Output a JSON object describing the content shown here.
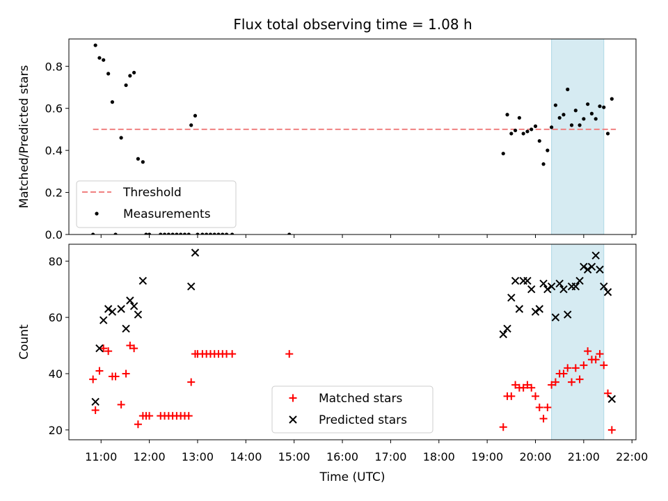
{
  "figure_title": "Flux total observing time = 1.08 h",
  "colors": {
    "threshold": "#f08080",
    "measurements": "#000000",
    "matched": "#ff0000",
    "predicted": "#000000",
    "shade": "#add8e6"
  },
  "chart_data": [
    {
      "type": "scatter",
      "title": "",
      "xlabel": "",
      "ylabel": "Matched/Predicted stars",
      "xlim": [
        "10:20",
        "22:05"
      ],
      "ylim": [
        0,
        0.93
      ],
      "yticks": [
        0.0,
        0.2,
        0.4,
        0.6,
        0.8
      ],
      "grid": false,
      "legend_position": "lower-left",
      "highlight_span": [
        "20:20",
        "21:25"
      ],
      "threshold": {
        "name": "Threshold",
        "value": 0.5,
        "from": "10:50",
        "to": "21:40"
      },
      "series": [
        {
          "name": "Measurements",
          "points": [
            [
              "10:50",
              0.0
            ],
            [
              "10:53",
              0.9
            ],
            [
              "10:58",
              0.84
            ],
            [
              "11:03",
              0.83
            ],
            [
              "11:09",
              0.765
            ],
            [
              "11:14",
              0.63
            ],
            [
              "11:18",
              0.0
            ],
            [
              "11:25",
              0.46
            ],
            [
              "11:31",
              0.71
            ],
            [
              "11:36",
              0.755
            ],
            [
              "11:41",
              0.77
            ],
            [
              "11:46",
              0.36
            ],
            [
              "11:52",
              0.345
            ],
            [
              "11:56",
              0.0
            ],
            [
              "12:00",
              0.0
            ],
            [
              "12:14",
              0.0
            ],
            [
              "12:19",
              0.0
            ],
            [
              "12:24",
              0.0
            ],
            [
              "12:29",
              0.0
            ],
            [
              "12:34",
              0.0
            ],
            [
              "12:39",
              0.0
            ],
            [
              "12:44",
              0.0
            ],
            [
              "12:49",
              0.0
            ],
            [
              "12:52",
              0.52
            ],
            [
              "12:57",
              0.565
            ],
            [
              "13:00",
              0.0
            ],
            [
              "13:06",
              0.0
            ],
            [
              "13:11",
              0.0
            ],
            [
              "13:16",
              0.0
            ],
            [
              "13:21",
              0.0
            ],
            [
              "13:26",
              0.0
            ],
            [
              "13:31",
              0.0
            ],
            [
              "13:36",
              0.0
            ],
            [
              "13:43",
              0.0
            ],
            [
              "14:54",
              0.0
            ],
            [
              "19:20",
              0.385
            ],
            [
              "19:25",
              0.57
            ],
            [
              "19:30",
              0.48
            ],
            [
              "19:35",
              0.495
            ],
            [
              "19:40",
              0.555
            ],
            [
              "19:45",
              0.48
            ],
            [
              "19:50",
              0.49
            ],
            [
              "19:55",
              0.5
            ],
            [
              "20:00",
              0.515
            ],
            [
              "20:05",
              0.445
            ],
            [
              "20:10",
              0.335
            ],
            [
              "20:15",
              0.4
            ],
            [
              "20:20",
              0.51
            ],
            [
              "20:25",
              0.615
            ],
            [
              "20:30",
              0.555
            ],
            [
              "20:35",
              0.57
            ],
            [
              "20:40",
              0.69
            ],
            [
              "20:45",
              0.52
            ],
            [
              "20:50",
              0.59
            ],
            [
              "20:55",
              0.52
            ],
            [
              "21:00",
              0.55
            ],
            [
              "21:05",
              0.62
            ],
            [
              "21:10",
              0.575
            ],
            [
              "21:15",
              0.55
            ],
            [
              "21:20",
              0.61
            ],
            [
              "21:25",
              0.605
            ],
            [
              "21:30",
              0.48
            ],
            [
              "21:35",
              0.645
            ]
          ]
        }
      ]
    },
    {
      "type": "scatter",
      "title": "",
      "xlabel": "Time (UTC)",
      "ylabel": "Count",
      "xlim": [
        "10:20",
        "22:05"
      ],
      "ylim": [
        16.5,
        86
      ],
      "yticks": [
        20,
        40,
        60,
        80
      ],
      "xticks": [
        "11:00",
        "12:00",
        "13:00",
        "14:00",
        "15:00",
        "16:00",
        "17:00",
        "18:00",
        "19:00",
        "20:00",
        "21:00",
        "22:00"
      ],
      "grid": false,
      "legend_position": "lower-center",
      "highlight_span": [
        "20:20",
        "21:25"
      ],
      "series": [
        {
          "name": "Matched stars",
          "points": [
            [
              "10:50",
              38
            ],
            [
              "10:53",
              27
            ],
            [
              "10:58",
              41
            ],
            [
              "11:03",
              49
            ],
            [
              "11:09",
              48
            ],
            [
              "11:14",
              39
            ],
            [
              "11:18",
              39
            ],
            [
              "11:25",
              29
            ],
            [
              "11:31",
              40
            ],
            [
              "11:36",
              50
            ],
            [
              "11:41",
              49
            ],
            [
              "11:46",
              22
            ],
            [
              "11:52",
              25
            ],
            [
              "11:56",
              25
            ],
            [
              "12:00",
              25
            ],
            [
              "12:14",
              25
            ],
            [
              "12:19",
              25
            ],
            [
              "12:24",
              25
            ],
            [
              "12:29",
              25
            ],
            [
              "12:34",
              25
            ],
            [
              "12:39",
              25
            ],
            [
              "12:44",
              25
            ],
            [
              "12:49",
              25
            ],
            [
              "12:52",
              37
            ],
            [
              "12:57",
              47
            ],
            [
              "13:00",
              47
            ],
            [
              "13:06",
              47
            ],
            [
              "13:11",
              47
            ],
            [
              "13:16",
              47
            ],
            [
              "13:21",
              47
            ],
            [
              "13:26",
              47
            ],
            [
              "13:31",
              47
            ],
            [
              "13:36",
              47
            ],
            [
              "13:43",
              47
            ],
            [
              "14:54",
              47
            ],
            [
              "19:20",
              21
            ],
            [
              "19:25",
              32
            ],
            [
              "19:30",
              32
            ],
            [
              "19:35",
              36
            ],
            [
              "19:40",
              35
            ],
            [
              "19:45",
              35
            ],
            [
              "19:50",
              36
            ],
            [
              "19:55",
              35
            ],
            [
              "20:00",
              32
            ],
            [
              "20:05",
              28
            ],
            [
              "20:10",
              24
            ],
            [
              "20:15",
              28
            ],
            [
              "20:20",
              36
            ],
            [
              "20:25",
              37
            ],
            [
              "20:30",
              40
            ],
            [
              "20:35",
              40
            ],
            [
              "20:40",
              42
            ],
            [
              "20:45",
              37
            ],
            [
              "20:50",
              42
            ],
            [
              "20:55",
              38
            ],
            [
              "21:00",
              43
            ],
            [
              "21:05",
              48
            ],
            [
              "21:10",
              45
            ],
            [
              "21:15",
              45
            ],
            [
              "21:20",
              47
            ],
            [
              "21:25",
              43
            ],
            [
              "21:30",
              33
            ],
            [
              "21:35",
              20
            ]
          ]
        },
        {
          "name": "Predicted stars",
          "points": [
            [
              "10:53",
              30
            ],
            [
              "10:58",
              49
            ],
            [
              "11:03",
              59
            ],
            [
              "11:09",
              63
            ],
            [
              "11:14",
              62
            ],
            [
              "11:25",
              63
            ],
            [
              "11:31",
              56
            ],
            [
              "11:36",
              66
            ],
            [
              "11:41",
              64
            ],
            [
              "11:46",
              61
            ],
            [
              "11:52",
              73
            ],
            [
              "12:52",
              71
            ],
            [
              "12:57",
              83
            ],
            [
              "19:20",
              54
            ],
            [
              "19:25",
              56
            ],
            [
              "19:30",
              67
            ],
            [
              "19:35",
              73
            ],
            [
              "19:40",
              63
            ],
            [
              "19:45",
              73
            ],
            [
              "19:50",
              73
            ],
            [
              "19:55",
              70
            ],
            [
              "20:00",
              62
            ],
            [
              "20:05",
              63
            ],
            [
              "20:10",
              72
            ],
            [
              "20:15",
              70
            ],
            [
              "20:20",
              71
            ],
            [
              "20:25",
              60
            ],
            [
              "20:30",
              72
            ],
            [
              "20:35",
              70
            ],
            [
              "20:40",
              61
            ],
            [
              "20:45",
              71
            ],
            [
              "20:50",
              71
            ],
            [
              "20:55",
              73
            ],
            [
              "21:00",
              78
            ],
            [
              "21:05",
              77
            ],
            [
              "21:10",
              78
            ],
            [
              "21:15",
              82
            ],
            [
              "21:20",
              77
            ],
            [
              "21:25",
              71
            ],
            [
              "21:30",
              69
            ],
            [
              "21:35",
              31
            ]
          ]
        }
      ]
    }
  ]
}
